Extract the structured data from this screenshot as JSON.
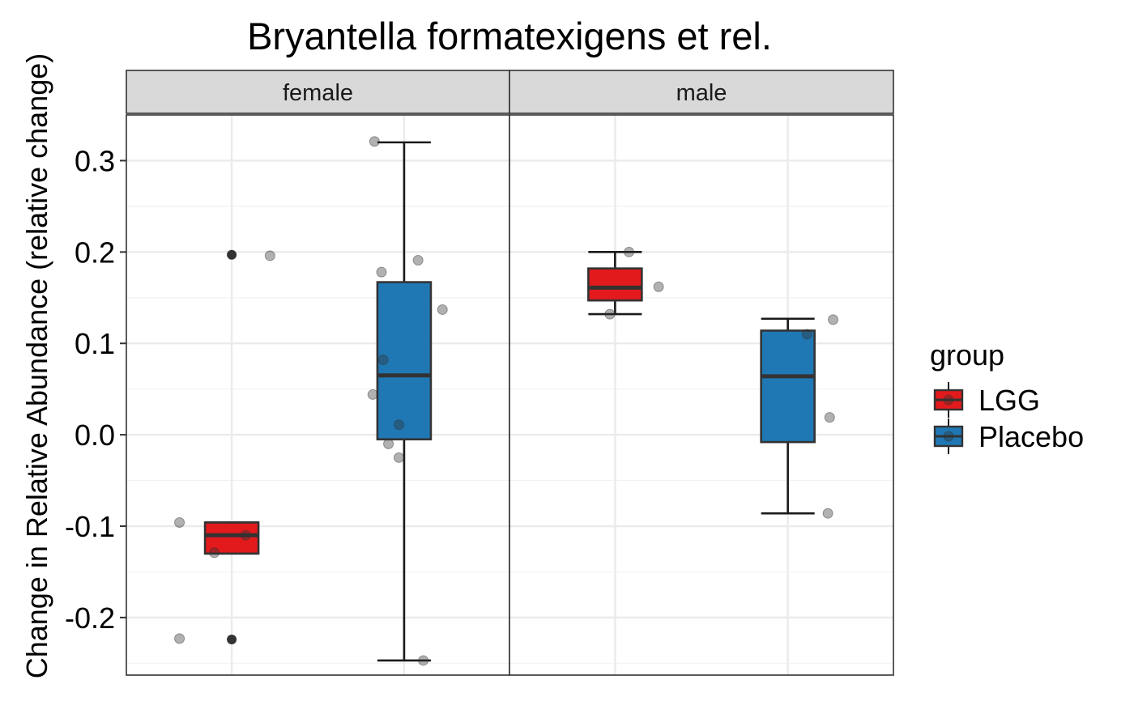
{
  "chart_data": {
    "type": "boxplot",
    "title": "Bryantella formatexigens et rel.",
    "ylabel": "Change in Relative Abundance (relative change)",
    "xlabel": "",
    "ylim": [
      -0.263,
      0.35
    ],
    "yticks": [
      -0.2,
      -0.1,
      0.0,
      0.1,
      0.2,
      0.3
    ],
    "ytick_labels": [
      "-0.2",
      "-0.1",
      "0.0",
      "0.1",
      "0.2",
      "0.3"
    ],
    "grid": true,
    "legend": {
      "title": "group",
      "position": "right",
      "entries": [
        "LGG",
        "Placebo"
      ]
    },
    "colors": {
      "LGG": "#e31a1c",
      "Placebo": "#1f78b4"
    },
    "facets": [
      {
        "label": "female",
        "boxes": [
          {
            "group": "LGG",
            "lower_whisker": -0.13,
            "q1": -0.13,
            "median": -0.11,
            "q3": -0.096,
            "upper_whisker": -0.096,
            "outliers": [
              0.197,
              -0.224
            ],
            "points": [
              {
                "x": -0.3,
                "y": -0.096
              },
              {
                "x": 0.22,
                "y": 0.196
              },
              {
                "x": -0.1,
                "y": -0.129
              },
              {
                "x": 0.08,
                "y": -0.11
              },
              {
                "x": -0.3,
                "y": -0.223
              }
            ]
          },
          {
            "group": "Placebo",
            "lower_whisker": -0.247,
            "q1": -0.005,
            "median": 0.065,
            "q3": 0.167,
            "upper_whisker": 0.32,
            "outliers": [],
            "points": [
              {
                "x": -0.17,
                "y": 0.321
              },
              {
                "x": -0.13,
                "y": 0.178
              },
              {
                "x": 0.08,
                "y": 0.191
              },
              {
                "x": 0.22,
                "y": 0.137
              },
              {
                "x": -0.12,
                "y": 0.082
              },
              {
                "x": -0.18,
                "y": 0.044
              },
              {
                "x": -0.03,
                "y": 0.011
              },
              {
                "x": -0.09,
                "y": -0.01
              },
              {
                "x": -0.03,
                "y": -0.025
              },
              {
                "x": 0.11,
                "y": -0.247
              }
            ]
          }
        ]
      },
      {
        "label": "male",
        "boxes": [
          {
            "group": "LGG",
            "lower_whisker": 0.132,
            "q1": 0.147,
            "median": 0.161,
            "q3": 0.182,
            "upper_whisker": 0.2,
            "outliers": [],
            "points": [
              {
                "x": 0.08,
                "y": 0.2
              },
              {
                "x": 0.25,
                "y": 0.162
              },
              {
                "x": -0.03,
                "y": 0.132
              }
            ]
          },
          {
            "group": "Placebo",
            "lower_whisker": -0.086,
            "q1": -0.008,
            "median": 0.064,
            "q3": 0.114,
            "upper_whisker": 0.127,
            "outliers": [],
            "points": [
              {
                "x": 0.26,
                "y": 0.126
              },
              {
                "x": 0.11,
                "y": 0.11
              },
              {
                "x": 0.24,
                "y": 0.019
              },
              {
                "x": 0.23,
                "y": -0.086
              }
            ]
          }
        ]
      }
    ]
  }
}
